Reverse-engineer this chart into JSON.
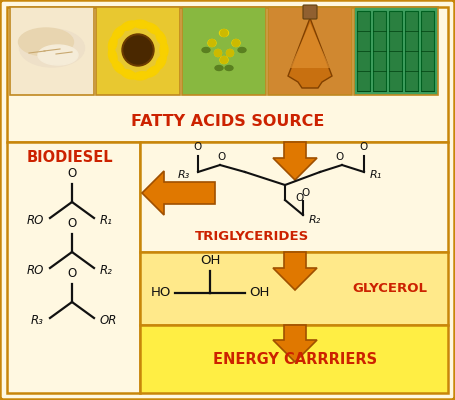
{
  "bg_outer": "#FFF8E1",
  "border_color": "#C8860A",
  "orange_arrow": "#E07800",
  "orange_arrow_edge": "#A05000",
  "red_text": "#CC2200",
  "black": "#111111",
  "top_bg": "#FFF8E1",
  "left_bg": "#FFF8E1",
  "right_top_bg": "#FFF8E1",
  "glyc_bg": "#FFE98A",
  "energy_bg": "#FFEE44",
  "title_fatty": "FATTY ACIDS SOURCE",
  "label_biodiesel": "BIODIESEL",
  "label_triglycerides": "TRIGLYCERIDES",
  "label_glycerol": "GLYCEROL",
  "label_energy": "ENERGY CARRRIERS",
  "img_colors": [
    "#F5E8CC",
    "#E8C830",
    "#88B840",
    "#D08830",
    "#40A060"
  ],
  "img_border": "#C08820"
}
